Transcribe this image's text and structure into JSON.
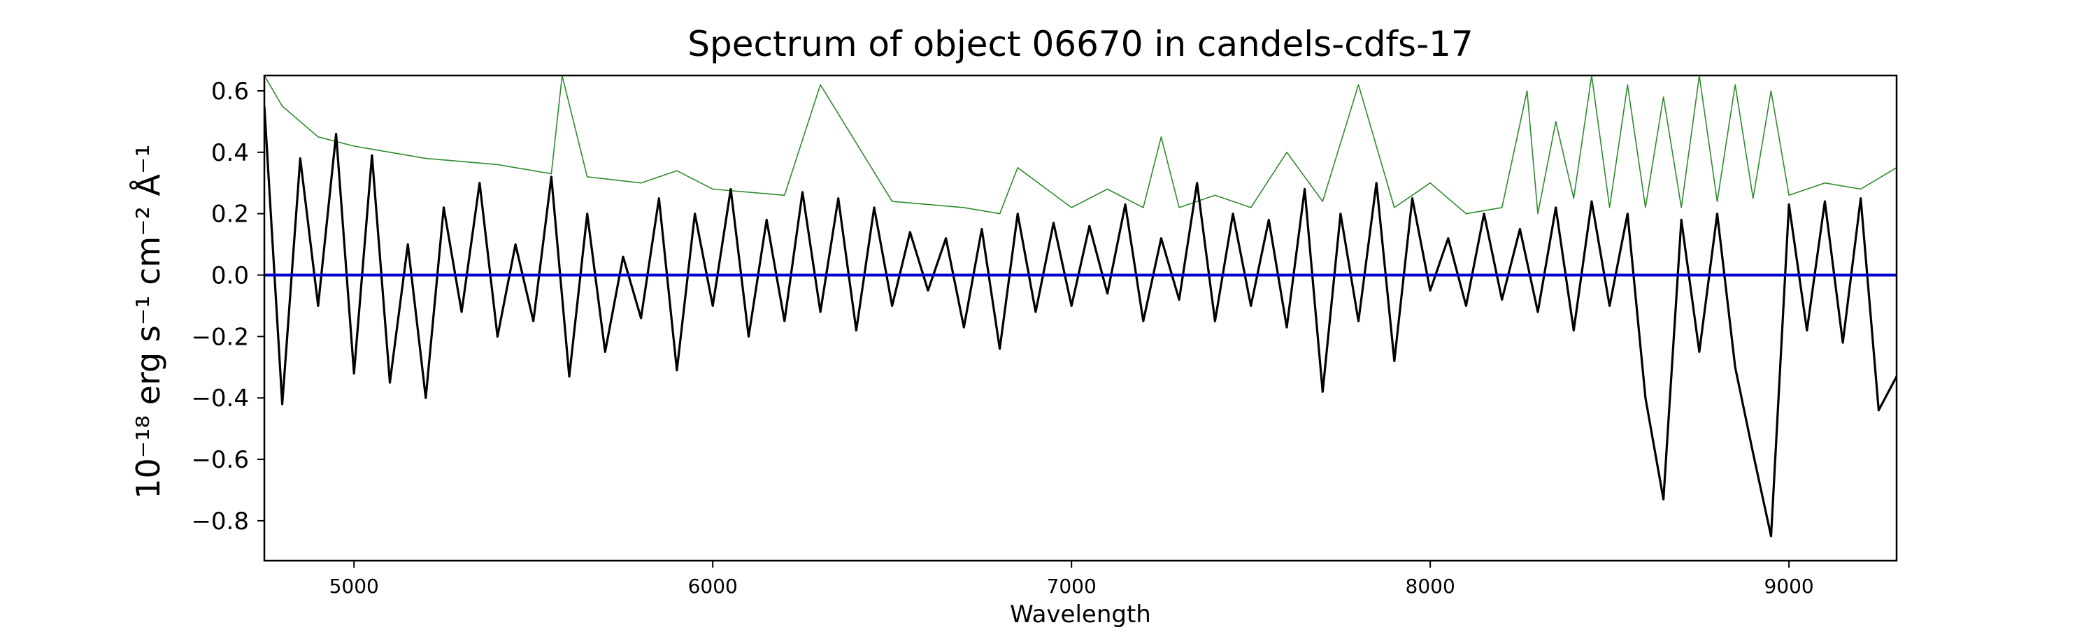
{
  "chart_data": {
    "type": "line",
    "title": "Spectrum of object 06670 in candels-cdfs-17",
    "xlabel": "Wavelength",
    "ylabel": "10⁻¹⁸ erg s⁻¹ cm⁻² Å⁻¹",
    "xlim": [
      4750,
      9300
    ],
    "ylim": [
      -0.93,
      0.65
    ],
    "x_ticks": [
      5000,
      6000,
      7000,
      8000,
      9000
    ],
    "y_ticks": [
      -0.8,
      -0.6,
      -0.4,
      -0.2,
      0.0,
      0.2,
      0.4,
      0.6
    ],
    "y_tick_labels": [
      "−0.8",
      "−0.6",
      "−0.4",
      "−0.2",
      "0.0",
      "0.2",
      "0.4",
      "0.6"
    ],
    "grid": false,
    "series": [
      {
        "role": "flux",
        "color": "#000000",
        "x": [
          4750,
          4800,
          4850,
          4900,
          4950,
          5000,
          5050,
          5100,
          5150,
          5200,
          5250,
          5300,
          5350,
          5400,
          5450,
          5500,
          5550,
          5600,
          5650,
          5700,
          5750,
          5800,
          5850,
          5900,
          5950,
          6000,
          6050,
          6100,
          6150,
          6200,
          6250,
          6300,
          6350,
          6400,
          6450,
          6500,
          6550,
          6600,
          6650,
          6700,
          6750,
          6800,
          6850,
          6900,
          6950,
          7000,
          7050,
          7100,
          7150,
          7200,
          7250,
          7300,
          7350,
          7400,
          7450,
          7500,
          7550,
          7600,
          7650,
          7700,
          7750,
          7800,
          7850,
          7900,
          7950,
          8000,
          8050,
          8100,
          8150,
          8200,
          8250,
          8300,
          8350,
          8400,
          8450,
          8500,
          8550,
          8600,
          8650,
          8700,
          8750,
          8800,
          8850,
          8900,
          8950,
          9000,
          9050,
          9100,
          9150,
          9200,
          9250,
          9300
        ],
        "y": [
          0.55,
          -0.42,
          0.38,
          -0.1,
          0.46,
          -0.32,
          0.39,
          -0.35,
          0.1,
          -0.4,
          0.22,
          -0.12,
          0.3,
          -0.2,
          0.1,
          -0.15,
          0.32,
          -0.33,
          0.2,
          -0.25,
          0.06,
          -0.14,
          0.25,
          -0.31,
          0.2,
          -0.1,
          0.28,
          -0.2,
          0.18,
          -0.15,
          0.27,
          -0.12,
          0.25,
          -0.18,
          0.22,
          -0.1,
          0.14,
          -0.05,
          0.12,
          -0.17,
          0.15,
          -0.24,
          0.2,
          -0.12,
          0.17,
          -0.1,
          0.16,
          -0.06,
          0.23,
          -0.15,
          0.12,
          -0.08,
          0.3,
          -0.15,
          0.2,
          -0.1,
          0.18,
          -0.17,
          0.28,
          -0.38,
          0.2,
          -0.15,
          0.3,
          -0.28,
          0.25,
          -0.05,
          0.12,
          -0.1,
          0.2,
          -0.08,
          0.15,
          -0.12,
          0.22,
          -0.18,
          0.24,
          -0.1,
          0.2,
          -0.4,
          -0.73,
          0.18,
          -0.25,
          0.2,
          -0.3,
          -0.58,
          -0.85,
          0.23,
          -0.18,
          0.24,
          -0.22,
          0.25,
          -0.44,
          -0.33
        ]
      },
      {
        "role": "model",
        "color": "#2e8b2e",
        "x": [
          4750,
          4800,
          4900,
          5000,
          5200,
          5400,
          5550,
          5580,
          5650,
          5800,
          5900,
          6000,
          6200,
          6300,
          6500,
          6700,
          6800,
          6850,
          7000,
          7100,
          7200,
          7250,
          7300,
          7400,
          7500,
          7600,
          7700,
          7800,
          7900,
          8000,
          8100,
          8200,
          8270,
          8300,
          8350,
          8400,
          8450,
          8500,
          8550,
          8600,
          8650,
          8700,
          8750,
          8800,
          8850,
          8900,
          8950,
          9000,
          9100,
          9200,
          9300
        ],
        "y": [
          0.65,
          0.55,
          0.45,
          0.42,
          0.38,
          0.36,
          0.33,
          0.65,
          0.32,
          0.3,
          0.34,
          0.28,
          0.26,
          0.62,
          0.24,
          0.22,
          0.2,
          0.35,
          0.22,
          0.28,
          0.22,
          0.45,
          0.22,
          0.26,
          0.22,
          0.4,
          0.24,
          0.62,
          0.22,
          0.3,
          0.2,
          0.22,
          0.6,
          0.2,
          0.5,
          0.25,
          0.65,
          0.22,
          0.62,
          0.22,
          0.58,
          0.22,
          0.65,
          0.24,
          0.62,
          0.25,
          0.6,
          0.26,
          0.3,
          0.28,
          0.35
        ]
      },
      {
        "role": "zero",
        "color": "#0000cc",
        "x": [
          4750,
          9300
        ],
        "y": [
          0.0,
          0.0
        ]
      }
    ]
  }
}
